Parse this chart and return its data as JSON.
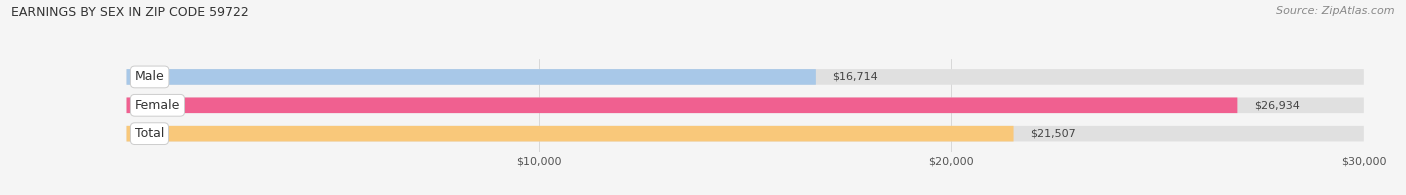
{
  "title": "EARNINGS BY SEX IN ZIP CODE 59722",
  "source": "Source: ZipAtlas.com",
  "categories": [
    "Male",
    "Female",
    "Total"
  ],
  "values": [
    16714,
    26934,
    21507
  ],
  "bar_colors": [
    "#a8c8e8",
    "#f06090",
    "#f9c87a"
  ],
  "bar_bg_color": "#e0e0e0",
  "xlim": [
    0,
    30000
  ],
  "xticks": [
    10000,
    20000,
    30000
  ],
  "xtick_labels": [
    "$10,000",
    "$20,000",
    "$30,000"
  ],
  "bar_height": 0.55,
  "figsize": [
    14.06,
    1.95
  ],
  "dpi": 100,
  "title_fontsize": 9,
  "tick_fontsize": 8,
  "label_fontsize": 9,
  "value_fontsize": 8,
  "source_fontsize": 8
}
